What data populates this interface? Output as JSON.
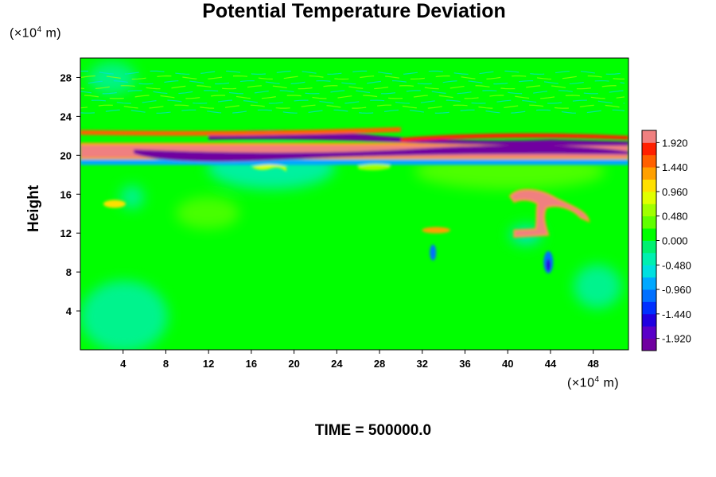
{
  "chart_data": {
    "type": "heatmap",
    "title": "Potential Temperature Deviation",
    "ylabel": "Height",
    "xlabel": "",
    "x_unit": {
      "prefix": "(×10",
      "exp": "4",
      "suffix": " m)"
    },
    "y_unit": {
      "prefix": "(×10",
      "exp": "4",
      "suffix": " m)"
    },
    "xlim": [
      0,
      51.3
    ],
    "ylim": [
      0,
      30
    ],
    "x_ticks": [
      4,
      8,
      12,
      16,
      20,
      24,
      28,
      32,
      36,
      40,
      44,
      48
    ],
    "y_ticks": [
      4,
      8,
      12,
      16,
      20,
      24,
      28
    ],
    "colorbar": {
      "min": -2.16,
      "max": 2.16,
      "levels": 18,
      "tick_labels": [
        "1.920",
        "1.440",
        "0.960",
        "0.480",
        "0.000",
        "-0.480",
        "-0.960",
        "-1.440",
        "-1.920"
      ],
      "tick_values": [
        1.92,
        1.44,
        0.96,
        0.48,
        0.0,
        -0.48,
        -0.96,
        -1.44,
        -1.92
      ],
      "colors": [
        "#7000a0",
        "#5a00c8",
        "#2000e0",
        "#0030ff",
        "#0070ff",
        "#00a8ff",
        "#00e0e0",
        "#00f0b0",
        "#00f070",
        "#00ff00",
        "#60ff00",
        "#a0ff00",
        "#e0ff00",
        "#ffe000",
        "#ffa000",
        "#ff6000",
        "#ff2000",
        "#f08080"
      ]
    },
    "features": [
      {
        "name": "upper band positive",
        "x": [
          0,
          51.3
        ],
        "y": 20.3,
        "value": 2.0
      },
      {
        "name": "upper band negative",
        "x": [
          12,
          44
        ],
        "y": 21.8,
        "value": -2.0
      },
      {
        "name": "plume",
        "x": 43,
        "y": 14,
        "value": 2.0
      }
    ]
  },
  "footer": "TIME = 500000.0"
}
